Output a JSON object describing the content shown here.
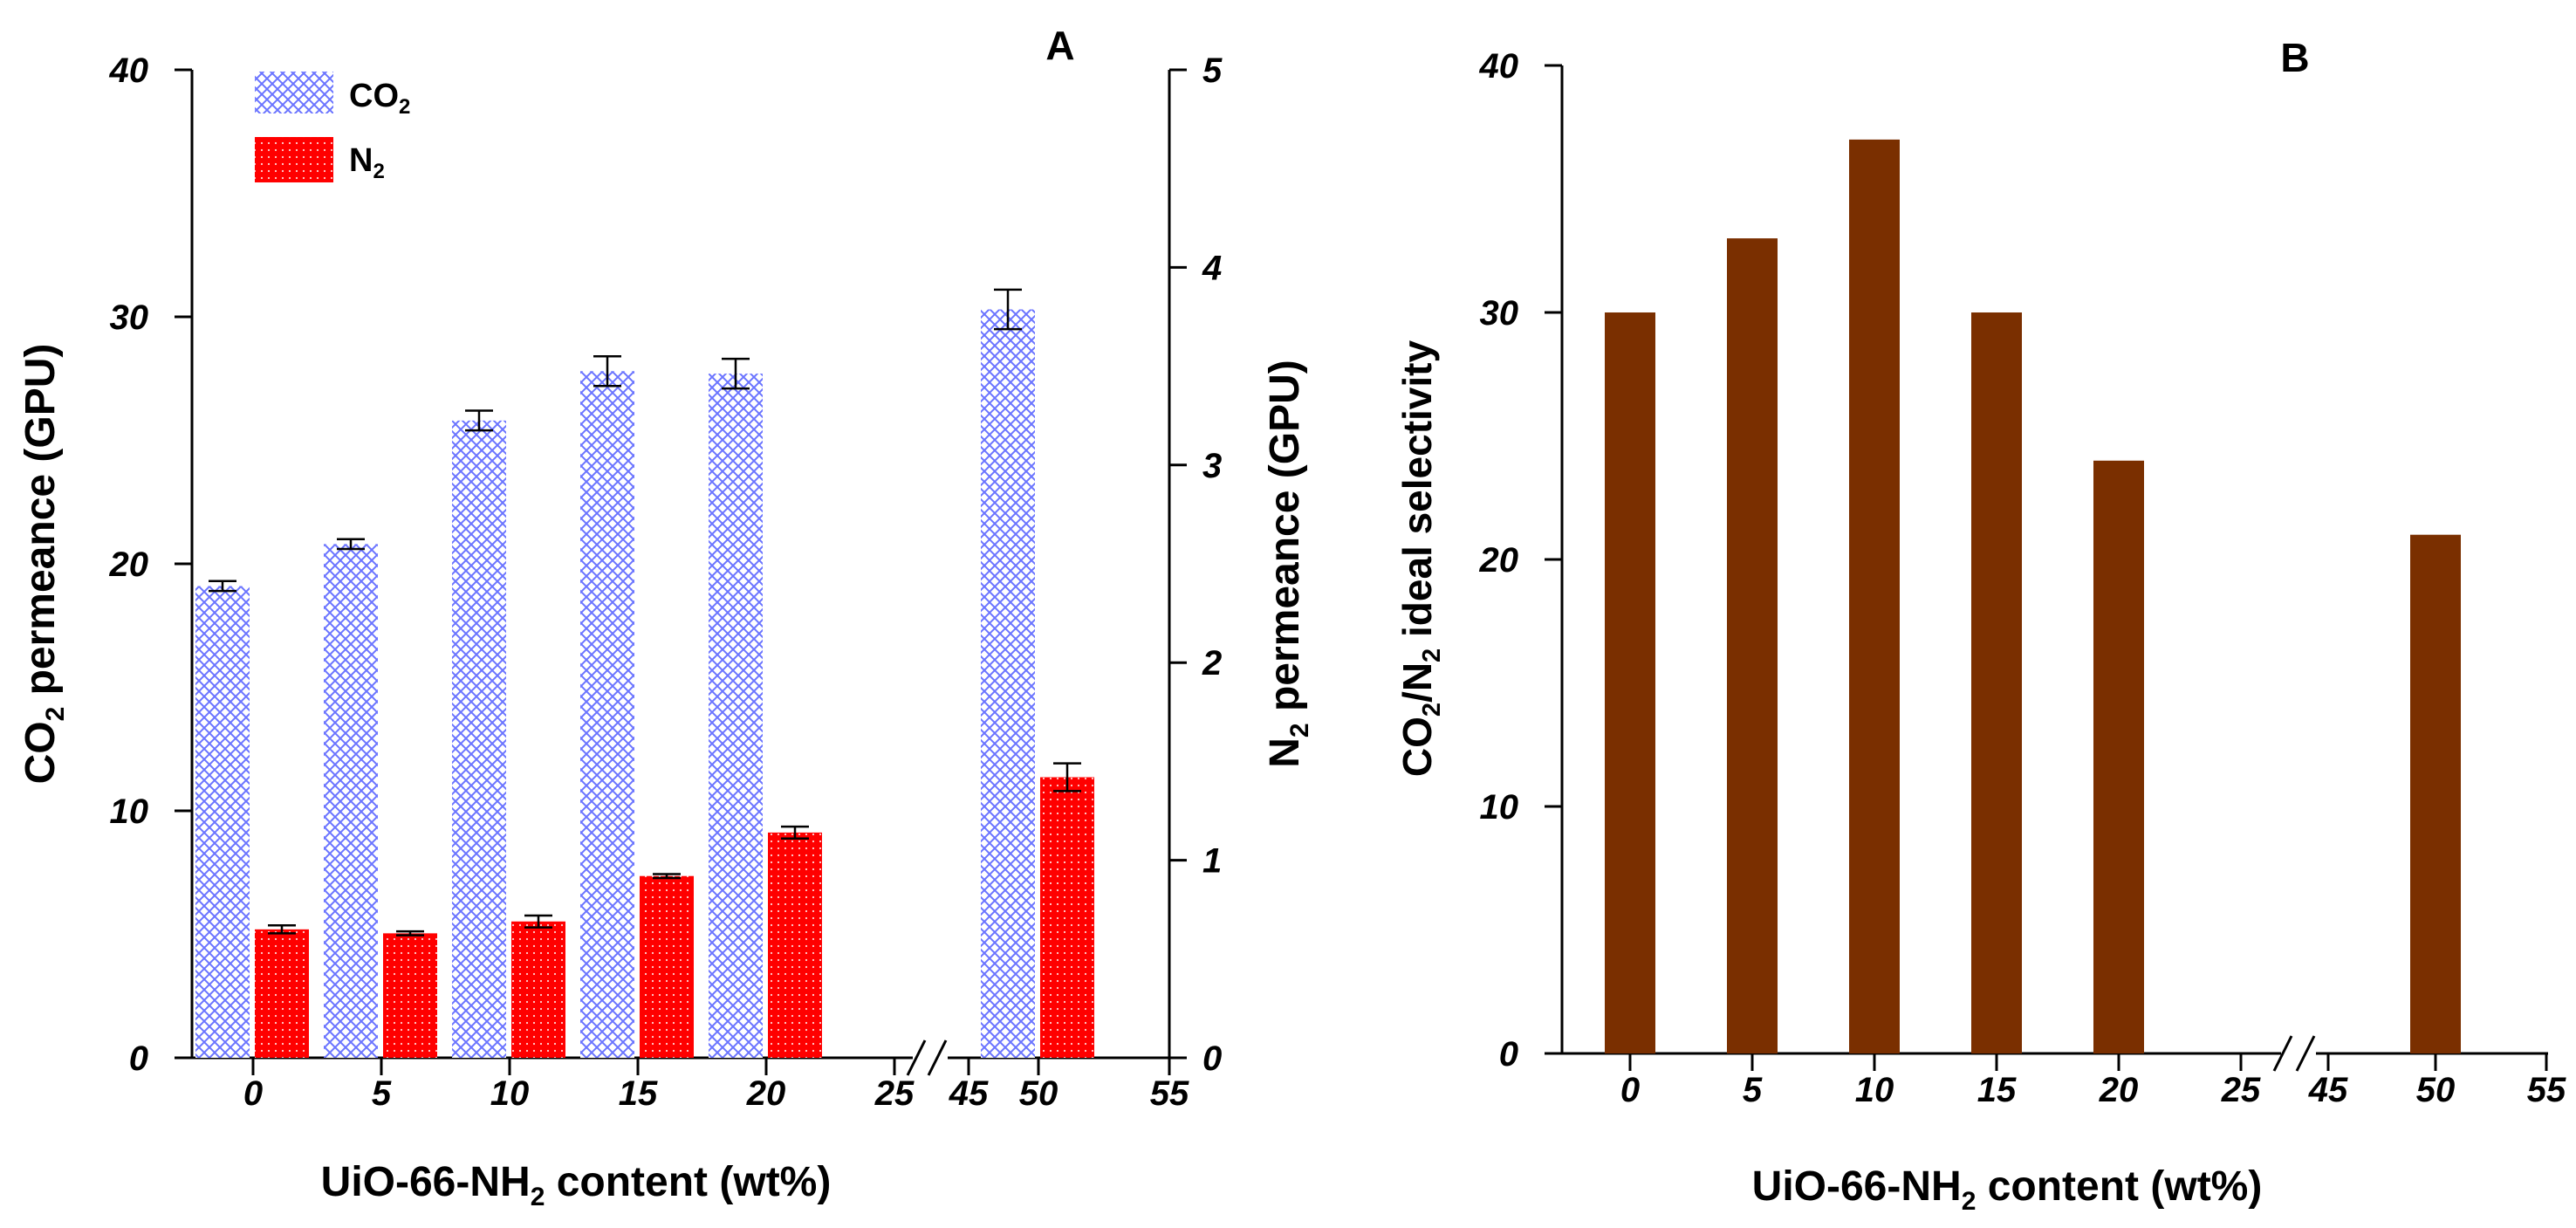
{
  "chart_data": [
    {
      "type": "bar",
      "panel_label": "A",
      "x_tick_labels": [
        "0",
        "5",
        "10",
        "15",
        "20",
        "25",
        "45",
        "50",
        "55"
      ],
      "x_axis_break": "//",
      "categories": [
        "0",
        "5",
        "10",
        "15",
        "20",
        "50"
      ],
      "xlabel": [
        "UiO-66-NH",
        "2",
        " content (wt%)"
      ],
      "ylabel_left": [
        "CO",
        "2",
        " permeance (GPU)"
      ],
      "ylabel_right": [
        "N",
        "2",
        " permeance (GPU)"
      ],
      "ylim_left": [
        0,
        40
      ],
      "ylim_right": [
        0,
        5
      ],
      "yticks_left": [
        "0",
        "10",
        "20",
        "30",
        "40"
      ],
      "yticks_right": [
        "0",
        "1",
        "2",
        "3",
        "4",
        "5"
      ],
      "grid": false,
      "legend_position": "top-left",
      "series": [
        {
          "name": [
            "CO",
            "2"
          ],
          "axis": "left",
          "pattern": "crosshatch",
          "color": "#6a74ff",
          "values": [
            19.1,
            20.8,
            25.8,
            27.8,
            27.7,
            30.3
          ],
          "error": [
            0.2,
            0.2,
            0.4,
            0.6,
            0.6,
            0.8
          ]
        },
        {
          "name": [
            "N",
            "2"
          ],
          "axis": "right",
          "pattern": "dotted",
          "color": "#ff0000",
          "values": [
            0.65,
            0.63,
            0.69,
            0.92,
            1.14,
            1.42
          ],
          "error": [
            0.02,
            0.01,
            0.03,
            0.01,
            0.03,
            0.07
          ]
        }
      ]
    },
    {
      "type": "bar",
      "panel_label": "B",
      "x_tick_labels": [
        "0",
        "5",
        "10",
        "15",
        "20",
        "25",
        "45",
        "50",
        "55"
      ],
      "x_axis_break": "//",
      "categories": [
        "0",
        "5",
        "10",
        "15",
        "20",
        "50"
      ],
      "xlabel": [
        "UiO-66-NH",
        "2",
        " content (wt%)"
      ],
      "ylabel": [
        "CO",
        "2",
        "/N",
        "2",
        " ideal selectivity"
      ],
      "ylim": [
        0,
        40
      ],
      "yticks": [
        "0",
        "10",
        "20",
        "30",
        "40"
      ],
      "grid": false,
      "series": [
        {
          "color": "#7a2f00",
          "values": [
            30,
            33,
            37,
            30,
            24,
            21
          ]
        }
      ]
    }
  ]
}
